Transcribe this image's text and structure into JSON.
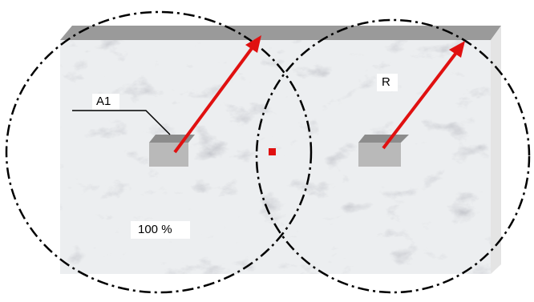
{
  "labels": {
    "a1": "A1",
    "r": "R",
    "coverage": "100 %"
  }
}
